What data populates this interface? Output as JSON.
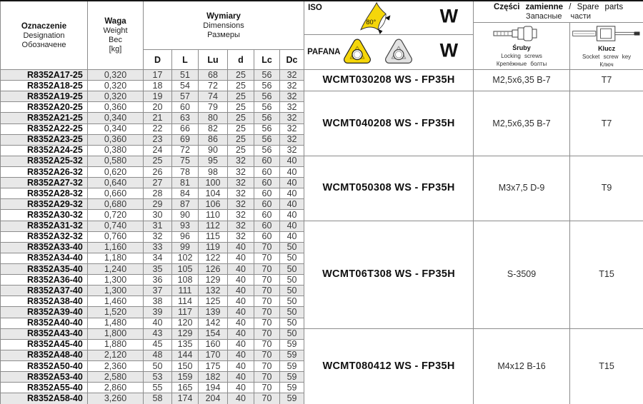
{
  "header": {
    "designation": {
      "pl": "Oznaczenie",
      "en": "Designation",
      "ru": "Обозначене"
    },
    "weight": {
      "pl": "Waga",
      "en": "Weight",
      "ru": "Вес",
      "unit": "[kg]"
    },
    "dimensions": {
      "pl": "Wymiary",
      "en": "Dimensions",
      "ru": "Размеры",
      "columns": [
        "D",
        "L",
        "Lu",
        "d",
        "Lc",
        "Dc"
      ]
    },
    "iso_label": "ISO",
    "pafana_label": "PAFANA",
    "shape_letter_iso": "W",
    "shape_letter_pafana": "W",
    "insert_angle": "80°",
    "spare_parts": {
      "pl": "Części zamienne",
      "sep": "/",
      "en": "Spare parts",
      "ru": "Запасные части",
      "screws": {
        "pl": "Śruby",
        "en": "Locking screws",
        "ru": "Крепёжные болты"
      },
      "key": {
        "pl": "Klucz",
        "en": "Socket screw key",
        "ru": "Ключ"
      }
    }
  },
  "table": {
    "columns": [
      "designation",
      "weight",
      "D",
      "L",
      "Lu",
      "d",
      "Lc",
      "Dc"
    ],
    "rows": [
      [
        "R8352A17-25",
        "0,320",
        "17",
        "51",
        "68",
        "25",
        "56",
        "32"
      ],
      [
        "R8352A18-25",
        "0,320",
        "18",
        "54",
        "72",
        "25",
        "56",
        "32"
      ],
      [
        "R8352A19-25",
        "0,320",
        "19",
        "57",
        "74",
        "25",
        "56",
        "32"
      ],
      [
        "R8352A20-25",
        "0,360",
        "20",
        "60",
        "79",
        "25",
        "56",
        "32"
      ],
      [
        "R8352A21-25",
        "0,340",
        "21",
        "63",
        "80",
        "25",
        "56",
        "32"
      ],
      [
        "R8352A22-25",
        "0,340",
        "22",
        "66",
        "82",
        "25",
        "56",
        "32"
      ],
      [
        "R8352A23-25",
        "0,360",
        "23",
        "69",
        "86",
        "25",
        "56",
        "32"
      ],
      [
        "R8352A24-25",
        "0,380",
        "24",
        "72",
        "90",
        "25",
        "56",
        "32"
      ],
      [
        "R8352A25-32",
        "0,580",
        "25",
        "75",
        "95",
        "32",
        "60",
        "40"
      ],
      [
        "R8352A26-32",
        "0,620",
        "26",
        "78",
        "98",
        "32",
        "60",
        "40"
      ],
      [
        "R8352A27-32",
        "0,640",
        "27",
        "81",
        "100",
        "32",
        "60",
        "40"
      ],
      [
        "R8352A28-32",
        "0,660",
        "28",
        "84",
        "104",
        "32",
        "60",
        "40"
      ],
      [
        "R8352A29-32",
        "0,680",
        "29",
        "87",
        "106",
        "32",
        "60",
        "40"
      ],
      [
        "R8352A30-32",
        "0,720",
        "30",
        "90",
        "110",
        "32",
        "60",
        "40"
      ],
      [
        "R8352A31-32",
        "0,740",
        "31",
        "93",
        "112",
        "32",
        "60",
        "40"
      ],
      [
        "R8352A32-32",
        "0,760",
        "32",
        "96",
        "115",
        "32",
        "60",
        "40"
      ],
      [
        "R8352A33-40",
        "1,160",
        "33",
        "99",
        "119",
        "40",
        "70",
        "50"
      ],
      [
        "R8352A34-40",
        "1,180",
        "34",
        "102",
        "122",
        "40",
        "70",
        "50"
      ],
      [
        "R8352A35-40",
        "1,240",
        "35",
        "105",
        "126",
        "40",
        "70",
        "50"
      ],
      [
        "R8352A36-40",
        "1,300",
        "36",
        "108",
        "129",
        "40",
        "70",
        "50"
      ],
      [
        "R8352A37-40",
        "1,300",
        "37",
        "111",
        "132",
        "40",
        "70",
        "50"
      ],
      [
        "R8352A38-40",
        "1,460",
        "38",
        "114",
        "125",
        "40",
        "70",
        "50"
      ],
      [
        "R8352A39-40",
        "1,520",
        "39",
        "117",
        "139",
        "40",
        "70",
        "50"
      ],
      [
        "R8352A40-40",
        "1,480",
        "40",
        "120",
        "142",
        "40",
        "70",
        "50"
      ],
      [
        "R8352A43-40",
        "1,800",
        "43",
        "129",
        "154",
        "40",
        "70",
        "50"
      ],
      [
        "R8352A45-40",
        "1,880",
        "45",
        "135",
        "160",
        "40",
        "70",
        "59"
      ],
      [
        "R8352A48-40",
        "2,120",
        "48",
        "144",
        "170",
        "40",
        "70",
        "59"
      ],
      [
        "R8352A50-40",
        "2,360",
        "50",
        "150",
        "175",
        "40",
        "70",
        "59"
      ],
      [
        "R8352A53-40",
        "2,580",
        "53",
        "159",
        "182",
        "40",
        "70",
        "59"
      ],
      [
        "R8352A55-40",
        "2,860",
        "55",
        "165",
        "194",
        "40",
        "70",
        "59"
      ],
      [
        "R8352A58-40",
        "3,260",
        "58",
        "174",
        "204",
        "40",
        "70",
        "59"
      ]
    ],
    "groups": [
      {
        "start": 0,
        "span": 2,
        "insert": "WCMT030208 WS - FP35H",
        "screw": "M2,5x6,35 B-7",
        "key": "T7"
      },
      {
        "start": 2,
        "span": 6,
        "insert": "WCMT040208 WS - FP35H",
        "screw": "M2,5x6,35 B-7",
        "key": "T7"
      },
      {
        "start": 8,
        "span": 6,
        "insert": "WCMT050308 WS - FP35H",
        "screw": "M3x7,5 D-9",
        "key": "T9"
      },
      {
        "start": 14,
        "span": 10,
        "insert": "WCMT06T308 WS - FP35H",
        "screw": "S-3509",
        "key": "T15"
      },
      {
        "start": 24,
        "span": 7,
        "insert": "WCMT080412 WS - FP35H",
        "screw": "M4x12 B-16",
        "key": "T15"
      }
    ]
  },
  "colors": {
    "accent_yellow": "#f5d60a",
    "row_stripe": "#e8e8e8",
    "border": "#8c8c8c"
  }
}
